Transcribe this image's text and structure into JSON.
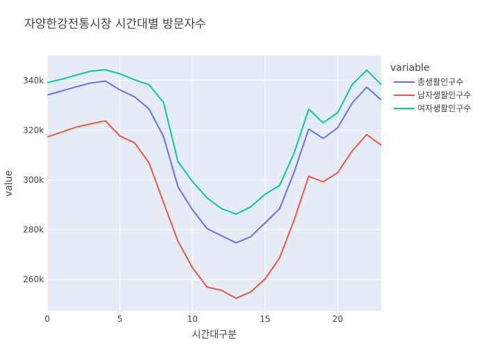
{
  "chart_data": {
    "type": "line",
    "title": "자양한강전통시장 시간대별 방문자수",
    "xlabel": "시간대구분",
    "ylabel": "value",
    "xlim": [
      0,
      23
    ],
    "ylim": [
      247500,
      350000
    ],
    "x_ticks": [
      0,
      5,
      10,
      15,
      20
    ],
    "y_ticks": [
      260000,
      280000,
      300000,
      320000,
      340000
    ],
    "x_tick_labels": [
      "0",
      "5",
      "10",
      "15",
      "20"
    ],
    "y_tick_labels": [
      "260k",
      "280k",
      "300k",
      "320k",
      "340k"
    ],
    "grid": true,
    "legend_title": "variable",
    "legend_position": "right",
    "x": [
      0,
      1,
      2,
      3,
      4,
      5,
      6,
      7,
      8,
      9,
      10,
      11,
      12,
      13,
      14,
      15,
      16,
      17,
      18,
      19,
      20,
      21,
      22,
      23
    ],
    "series": [
      {
        "name": "총생활인구수",
        "color": "#636efa",
        "values": [
          334200,
          335800,
          337500,
          339000,
          339800,
          336200,
          333500,
          328600,
          317500,
          297300,
          288000,
          280500,
          277600,
          274800,
          277200,
          282800,
          288500,
          303200,
          320500,
          316700,
          321000,
          331000,
          337300,
          332200
        ]
      },
      {
        "name": "남자생활인구수",
        "color": "#ef553b",
        "values": [
          317300,
          319300,
          321300,
          322600,
          323800,
          317700,
          315000,
          307000,
          291000,
          275400,
          264800,
          257000,
          255700,
          252500,
          255000,
          260300,
          268700,
          284000,
          301500,
          299300,
          303000,
          311700,
          318300,
          314000
        ]
      },
      {
        "name": "여자생활인구수",
        "color": "#00cc96",
        "values": [
          339200,
          340500,
          342200,
          343800,
          344300,
          342700,
          340300,
          338300,
          331200,
          307400,
          299400,
          292800,
          288500,
          286300,
          289200,
          294300,
          297800,
          310900,
          328500,
          323000,
          327100,
          338400,
          344200,
          338300
        ]
      }
    ]
  },
  "style": {
    "plot_bg": "#e5ecf6",
    "grid_color": "#ffffff",
    "text_color": "#444444"
  }
}
